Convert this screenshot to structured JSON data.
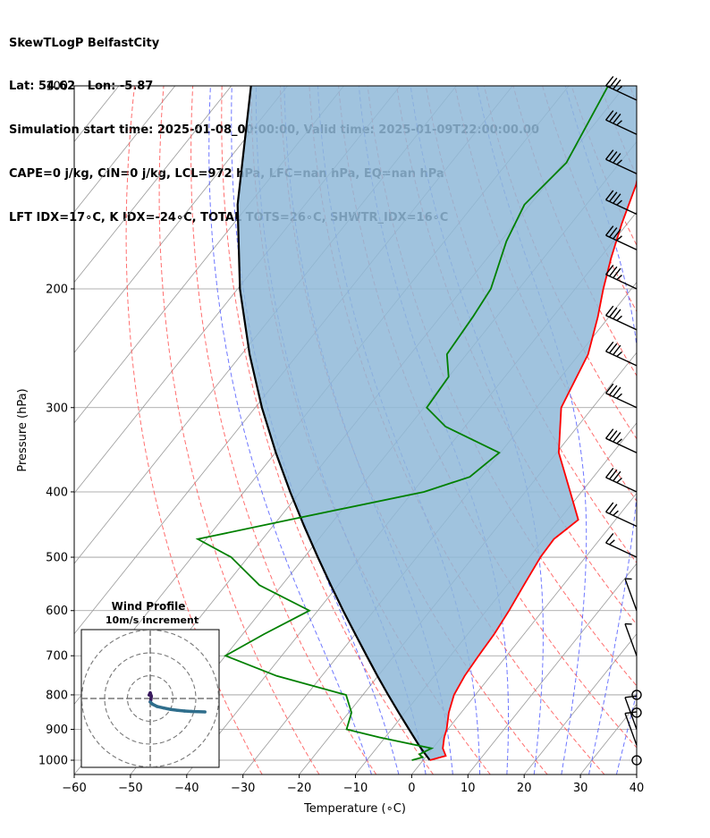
{
  "header": {
    "title": "SkewTLogP BelfastCity",
    "location": "Lat: 54.62   Lon: -5.87",
    "times": "Simulation start time: 2025-01-08_00:00:00, Valid time: 2025-01-09T22:00:00.00",
    "indices1": "CAPE=0 j/kg, CIN=0 j/kg, LCL=972 hPa, LFC=nan hPa, EQ=nan hPa",
    "indices2": "LFT IDX=17∘C, K IDX=-24∘C, TOTAL TOTS=26∘C, SHWTR_IDX=16∘C"
  },
  "colors": {
    "temperature": "#ff0000",
    "dewpoint": "#008000",
    "parcel": "#000000",
    "shade": "#8fb8d8",
    "dry_adiabat": "#ff5555",
    "moist_adiabat": "#4a55ff",
    "mixing_ratio": "#9933cc",
    "isotherm": "#999999",
    "hodograph_low": "#3a1a5e",
    "hodograph_high": "#2f6e8c"
  },
  "chart_data": {
    "type": "line",
    "subtype": "skew-t log-p",
    "xlabel": "Temperature (∘C)",
    "ylabel": "Pressure (hPa)",
    "xlim": [
      -60,
      40
    ],
    "ylim": [
      1050,
      100
    ],
    "x_ticks": [
      -60,
      -50,
      -40,
      -30,
      -20,
      -10,
      0,
      10,
      20,
      30,
      40
    ],
    "y_ticks": [
      1000,
      900,
      800,
      700,
      600,
      500,
      400,
      300,
      200,
      100
    ],
    "y_scale": "log",
    "grid": true,
    "series": [
      {
        "key": "temperature",
        "pressure": [
          1000,
          985,
          960,
          925,
          900,
          850,
          800,
          750,
          700,
          650,
          600,
          550,
          500,
          470,
          440,
          400,
          350,
          300,
          250,
          220,
          200,
          180,
          160,
          140,
          120,
          100
        ],
        "temperature": [
          1.2,
          3.4,
          1.8,
          0.5,
          -0.2,
          -2.2,
          -3.8,
          -4.6,
          -5.0,
          -5.3,
          -6.0,
          -7.0,
          -8.0,
          -8.2,
          -6.6,
          -12.0,
          -19.6,
          -25.6,
          -28.4,
          -32.0,
          -35.0,
          -38.0,
          -41.0,
          -44.0,
          -49.0,
          -56.0
        ]
      },
      {
        "key": "dewpoint",
        "pressure": [
          1000,
          990,
          980,
          960,
          925,
          900,
          850,
          800,
          750,
          700,
          650,
          600,
          550,
          500,
          470,
          440,
          400,
          380,
          350,
          320,
          300,
          270,
          250,
          220,
          200,
          170,
          150,
          130,
          100
        ],
        "temperature": [
          -2.0,
          -0.5,
          -1.5,
          -0.2,
          -11.0,
          -18.0,
          -19.5,
          -23.0,
          -38.0,
          -50.0,
          -46.2,
          -41.5,
          -54.0,
          -63.0,
          -71.5,
          -58.0,
          -38.0,
          -32.0,
          -30.2,
          -43.5,
          -49.5,
          -50.0,
          -53.5,
          -54.2,
          -55.0,
          -59.0,
          -61.0,
          -59.5,
          -63.0
        ]
      },
      {
        "key": "parcel",
        "pressure": [
          1000,
          972,
          950,
          900,
          850,
          800,
          750,
          700,
          650,
          600,
          550,
          500,
          450,
          400,
          350,
          300,
          250,
          200,
          150,
          100
        ],
        "temperature": [
          1.2,
          -1.1,
          -2.9,
          -6.9,
          -11.1,
          -15.5,
          -20.1,
          -24.9,
          -30.0,
          -35.5,
          -41.3,
          -47.6,
          -54.4,
          -61.8,
          -69.9,
          -78.8,
          -88.6,
          -99.6,
          -112.0,
          -126.5
        ]
      }
    ],
    "wind_barbs": [
      {
        "pressure": 1000,
        "speed_kt": 0
      },
      {
        "pressure": 950,
        "speed_kt": 10
      },
      {
        "pressure": 900,
        "speed_kt": 10
      },
      {
        "pressure": 850,
        "speed_kt": 0
      },
      {
        "pressure": 800,
        "speed_kt": 0
      },
      {
        "pressure": 700,
        "speed_kt": 5
      },
      {
        "pressure": 600,
        "speed_kt": 5
      },
      {
        "pressure": 500,
        "speed_kt": 15
      },
      {
        "pressure": 450,
        "speed_kt": 25
      },
      {
        "pressure": 400,
        "speed_kt": 35
      },
      {
        "pressure": 350,
        "speed_kt": 35
      },
      {
        "pressure": 300,
        "speed_kt": 35
      },
      {
        "pressure": 260,
        "speed_kt": 35
      },
      {
        "pressure": 230,
        "speed_kt": 35
      },
      {
        "pressure": 200,
        "speed_kt": 35
      },
      {
        "pressure": 175,
        "speed_kt": 35
      },
      {
        "pressure": 155,
        "speed_kt": 35
      },
      {
        "pressure": 135,
        "speed_kt": 35
      },
      {
        "pressure": 118,
        "speed_kt": 35
      },
      {
        "pressure": 105,
        "speed_kt": 35
      }
    ],
    "hodograph": {
      "title": "Wind Profile",
      "subtitle": "10m/s increment",
      "u": [
        -0.5,
        0.0,
        0.5,
        0.3,
        0.0,
        1.0,
        3.0,
        6.0,
        9.0,
        12.0,
        15.0,
        18.0,
        21.0,
        24.0
      ],
      "v": [
        1.5,
        2.5,
        1.0,
        -0.5,
        -1.5,
        -2.5,
        -3.5,
        -4.2,
        -4.8,
        -5.2,
        -5.5,
        -5.7,
        -5.8,
        -5.9
      ]
    }
  }
}
